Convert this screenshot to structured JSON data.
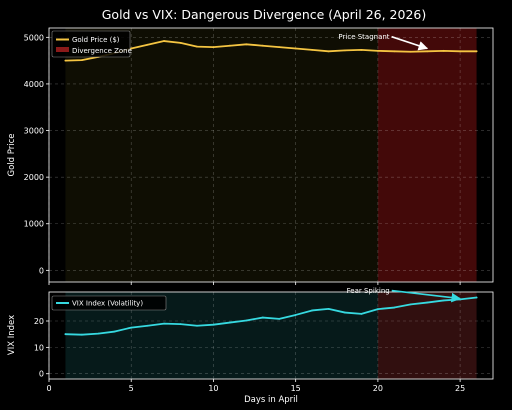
{
  "chart_data": [
    {
      "type": "line",
      "title": "Gold vs VIX: Dangerous Divergence (April 26, 2026)",
      "ylabel": "Gold Price",
      "x": [
        1,
        2,
        3,
        4,
        5,
        6,
        7,
        8,
        9,
        10,
        11,
        12,
        13,
        14,
        15,
        16,
        17,
        18,
        19,
        20,
        21,
        22,
        23,
        24,
        25,
        26
      ],
      "series": [
        {
          "name": "Gold Price ($)",
          "color": "#f5c542",
          "values": [
            4500,
            4510,
            4580,
            4660,
            4760,
            4840,
            4920,
            4880,
            4800,
            4790,
            4820,
            4850,
            4820,
            4790,
            4760,
            4730,
            4700,
            4720,
            4730,
            4710,
            4700,
            4690,
            4700,
            4710,
            4700,
            4700
          ]
        }
      ],
      "xlim": [
        0,
        27
      ],
      "ylim": [
        -250,
        5200
      ],
      "yticks": [
        0,
        1000,
        2000,
        3000,
        4000,
        5000
      ],
      "grid": true,
      "legend_position": "top-left",
      "legend": [
        {
          "label": "Gold Price ($)",
          "kind": "line",
          "color": "#f5c542"
        },
        {
          "label": "Divergence Zone",
          "kind": "patch",
          "color": "#8b1a1a"
        }
      ],
      "shaded_regions": [
        {
          "x0": 1,
          "x1": 20,
          "color": "#4a4410",
          "opacity": 0.2
        },
        {
          "x0": 20,
          "x1": 26,
          "color": "#b01818",
          "opacity": 0.38
        }
      ],
      "annotations": [
        {
          "text": "Price Stagnant",
          "text_x": 17.6,
          "text_y": 4960,
          "arrow_to_x": 23,
          "arrow_to_y": 4760,
          "arrow_color": "#ffffff"
        }
      ]
    },
    {
      "type": "line",
      "xlabel": "Days in April",
      "ylabel": "VIX Index",
      "x": [
        1,
        2,
        3,
        4,
        5,
        6,
        7,
        8,
        9,
        10,
        11,
        12,
        13,
        14,
        15,
        16,
        17,
        18,
        19,
        20,
        21,
        22,
        23,
        24,
        25,
        26
      ],
      "series": [
        {
          "name": "VIX Index (Volatility)",
          "color": "#36d9e0",
          "values": [
            15,
            14.8,
            15.2,
            16,
            17.5,
            18.2,
            19,
            18.8,
            18.2,
            18.6,
            19.4,
            20.2,
            21.3,
            20.8,
            22.3,
            24,
            24.6,
            23.2,
            22.7,
            24.5,
            25.1,
            26.3,
            27,
            27.8,
            28.2,
            28.9
          ]
        }
      ],
      "xlim": [
        0,
        27
      ],
      "ylim": [
        -2,
        31
      ],
      "xticks": [
        0,
        5,
        10,
        15,
        20,
        25
      ],
      "yticks": [
        0,
        10,
        20
      ],
      "grid": true,
      "legend_position": "top-left",
      "legend": [
        {
          "label": "VIX Index (Volatility)",
          "kind": "line",
          "color": "#36d9e0"
        }
      ],
      "shaded_regions": [
        {
          "x0": 1,
          "x1": 20,
          "color": "#0e3a3a",
          "opacity": 0.45
        },
        {
          "x0": 20,
          "x1": 26,
          "color": "#5a1c1c",
          "opacity": 0.55
        }
      ],
      "annotations": [
        {
          "text": "Fear Spiking",
          "text_x": 18.1,
          "text_y": 30.6,
          "arrow_to_x": 25,
          "arrow_to_y": 28.5,
          "arrow_color": "#36d9e0"
        }
      ]
    }
  ]
}
